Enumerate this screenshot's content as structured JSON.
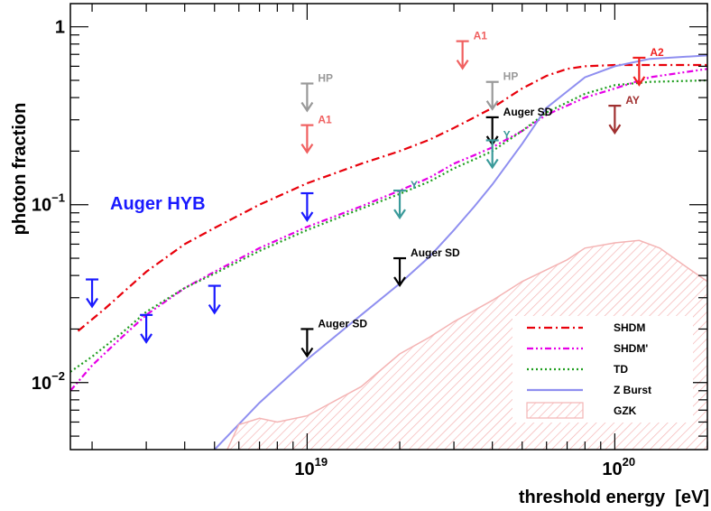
{
  "chart_data": {
    "type": "line",
    "title": "",
    "xlabel": "threshold energy  [eV]",
    "ylabel": "photon fraction",
    "xscale": "log",
    "yscale": "log",
    "xlim": [
      1.7e+18,
      2e+20
    ],
    "ylim": [
      0.0042,
      1.35
    ],
    "x_tick_labels": [
      {
        "base": "10",
        "exp": "19",
        "value": 1e+19
      },
      {
        "base": "10",
        "exp": "20",
        "value": 1e+20
      }
    ],
    "y_tick_labels": [
      {
        "text": "1",
        "value": 1
      },
      {
        "base": "10",
        "exp": "−1",
        "value": 0.1
      },
      {
        "base": "10",
        "exp": "−2",
        "value": 0.01
      }
    ],
    "annotation": {
      "text": "Auger HYB",
      "color": "#1a1aff"
    },
    "series": [
      {
        "name": "SHDM",
        "color": "#e8000b",
        "dash": "dash-dot",
        "points": [
          [
            1.8e+18,
            0.0195
          ],
          [
            2.2e+18,
            0.026
          ],
          [
            3e+18,
            0.042
          ],
          [
            4e+18,
            0.06
          ],
          [
            5e+18,
            0.074
          ],
          [
            7e+18,
            0.1
          ],
          [
            1e+19,
            0.132
          ],
          [
            1.5e+19,
            0.17
          ],
          [
            2e+19,
            0.2
          ],
          [
            2.5e+19,
            0.232
          ],
          [
            3e+19,
            0.27
          ],
          [
            3.5e+19,
            0.31
          ],
          [
            4e+19,
            0.35
          ],
          [
            4.5e+19,
            0.4
          ],
          [
            5e+19,
            0.45
          ],
          [
            6e+19,
            0.53
          ],
          [
            7e+19,
            0.58
          ],
          [
            8e+19,
            0.6
          ],
          [
            1e+20,
            0.61
          ],
          [
            1.3e+20,
            0.61
          ],
          [
            2e+20,
            0.61
          ]
        ]
      },
      {
        "name": "SHDM'",
        "color": "#e600e6",
        "dash": "dash-dot-dot",
        "points": [
          [
            1.7e+18,
            0.009
          ],
          [
            2e+18,
            0.0125
          ],
          [
            2.5e+18,
            0.018
          ],
          [
            3e+18,
            0.024
          ],
          [
            4e+18,
            0.034
          ],
          [
            5e+18,
            0.042
          ],
          [
            7e+18,
            0.057
          ],
          [
            1e+19,
            0.075
          ],
          [
            1.5e+19,
            0.098
          ],
          [
            2e+19,
            0.12
          ],
          [
            2.5e+19,
            0.142
          ],
          [
            3e+19,
            0.17
          ],
          [
            3.5e+19,
            0.19
          ],
          [
            4e+19,
            0.21
          ],
          [
            5e+19,
            0.26
          ],
          [
            6e+19,
            0.32
          ],
          [
            8e+19,
            0.4
          ],
          [
            1e+20,
            0.45
          ],
          [
            1.3e+20,
            0.52
          ],
          [
            2e+20,
            0.58
          ]
        ]
      },
      {
        "name": "TD",
        "color": "#1f9e1f",
        "dash": "dotted",
        "points": [
          [
            1.7e+18,
            0.0115
          ],
          [
            2e+18,
            0.014
          ],
          [
            2.5e+18,
            0.019
          ],
          [
            3e+18,
            0.025
          ],
          [
            4e+18,
            0.034
          ],
          [
            5e+18,
            0.041
          ],
          [
            7e+18,
            0.055
          ],
          [
            1e+19,
            0.072
          ],
          [
            1.5e+19,
            0.095
          ],
          [
            2e+19,
            0.115
          ],
          [
            2.5e+19,
            0.135
          ],
          [
            3e+19,
            0.16
          ],
          [
            3.5e+19,
            0.18
          ],
          [
            4e+19,
            0.2
          ],
          [
            5e+19,
            0.26
          ],
          [
            6e+19,
            0.33
          ],
          [
            8e+19,
            0.42
          ],
          [
            1e+20,
            0.47
          ],
          [
            1.3e+20,
            0.49
          ],
          [
            2e+20,
            0.5
          ]
        ]
      },
      {
        "name": "Z Burst",
        "color": "#8f8ff0",
        "dash": "solid",
        "points": [
          [
            5e+18,
            0.0042
          ],
          [
            7e+18,
            0.0077
          ],
          [
            1e+19,
            0.0135
          ],
          [
            1.5e+19,
            0.024
          ],
          [
            2e+19,
            0.036
          ],
          [
            2.5e+19,
            0.051
          ],
          [
            3e+19,
            0.072
          ],
          [
            3.5e+19,
            0.098
          ],
          [
            4e+19,
            0.13
          ],
          [
            5e+19,
            0.22
          ],
          [
            6e+19,
            0.35
          ],
          [
            8e+19,
            0.52
          ],
          [
            1e+20,
            0.6
          ],
          [
            1.3e+20,
            0.66
          ],
          [
            2e+20,
            0.69
          ]
        ]
      },
      {
        "name": "GZK",
        "color": "#f4b4b4",
        "dash": "hatched-band",
        "points": [
          [
            5.5e+18,
            0.0042
          ],
          [
            6e+18,
            0.0058
          ],
          [
            7e+18,
            0.0063
          ],
          [
            8e+18,
            0.006
          ],
          [
            1e+19,
            0.0065
          ],
          [
            1.5e+19,
            0.0095
          ],
          [
            2e+19,
            0.0145
          ],
          [
            2.5e+19,
            0.018
          ],
          [
            3e+19,
            0.022
          ],
          [
            4e+19,
            0.029
          ],
          [
            5e+19,
            0.037
          ],
          [
            7e+19,
            0.049
          ],
          [
            8e+19,
            0.057
          ],
          [
            1e+20,
            0.061
          ],
          [
            1.2e+20,
            0.063
          ],
          [
            1.4e+20,
            0.057
          ],
          [
            1.7e+20,
            0.045
          ],
          [
            2e+20,
            0.037
          ]
        ]
      }
    ],
    "limits": [
      {
        "label": "",
        "color": "#1a1aff",
        "x": 2e+18,
        "y": 0.038
      },
      {
        "label": "",
        "color": "#1a1aff",
        "x": 3e+18,
        "y": 0.024
      },
      {
        "label": "",
        "color": "#1a1aff",
        "x": 5e+18,
        "y": 0.035
      },
      {
        "label": "",
        "color": "#1a1aff",
        "x": 1e+19,
        "y": 0.116
      },
      {
        "label": "HP",
        "color": "#999999",
        "x": 1e+19,
        "y": 0.48
      },
      {
        "label": "A1",
        "color": "#f06060",
        "x": 1e+19,
        "y": 0.28
      },
      {
        "label": "Auger SD",
        "color": "#000000",
        "x": 1e+19,
        "y": 0.02
      },
      {
        "label": "Auger SD",
        "color": "#000000",
        "x": 2e+19,
        "y": 0.05
      },
      {
        "label": "Y",
        "color": "#3a9a9a",
        "x": 2e+19,
        "y": 0.12
      },
      {
        "label": "A1",
        "color": "#f06060",
        "x": 3.2e+19,
        "y": 0.83
      },
      {
        "label": "HP",
        "color": "#999999",
        "x": 4e+19,
        "y": 0.49
      },
      {
        "label": "Auger SD",
        "color": "#000000",
        "x": 4e+19,
        "y": 0.31
      },
      {
        "label": "Y",
        "color": "#3a9a9a",
        "x": 4e+19,
        "y": 0.23
      },
      {
        "label": "AY",
        "color": "#a03030",
        "x": 1e+20,
        "y": 0.36
      },
      {
        "label": "A2",
        "color": "#f02020",
        "x": 1.2e+20,
        "y": 0.67
      }
    ],
    "legend": {
      "position": "bottom-right",
      "entries": [
        "SHDM",
        "SHDM'",
        "TD",
        "Z Burst",
        "GZK"
      ]
    },
    "grid": false
  }
}
